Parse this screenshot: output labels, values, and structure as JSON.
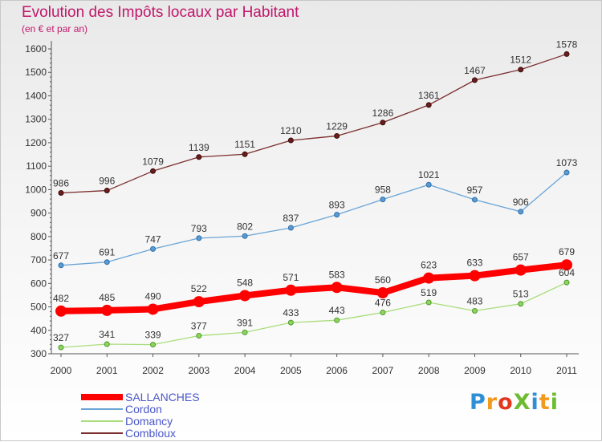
{
  "header": {
    "title": "Evolution des Impôts locaux par Habitant",
    "subtitle": "(en € et par an)"
  },
  "chart_data": {
    "type": "line",
    "title": "Evolution des Impôts locaux par Habitant",
    "subtitle": "(en € et par an)",
    "xlabel": "",
    "ylabel": "",
    "categories": [
      "2000",
      "2001",
      "2002",
      "2003",
      "2004",
      "2005",
      "2006",
      "2007",
      "2008",
      "2009",
      "2010",
      "2011"
    ],
    "ylim": [
      300,
      1600
    ],
    "yticks": [
      300,
      400,
      500,
      600,
      700,
      800,
      900,
      1000,
      1100,
      1200,
      1300,
      1400,
      1500,
      1600
    ],
    "grid": false,
    "legend_position": "bottom-left",
    "series": [
      {
        "name": "SALLANCHES",
        "color": "#ff0000",
        "values": [
          482,
          485,
          490,
          522,
          548,
          571,
          583,
          560,
          623,
          633,
          657,
          679
        ]
      },
      {
        "name": "Cordon",
        "color": "#6aa5d6",
        "values": [
          677,
          691,
          747,
          793,
          802,
          837,
          893,
          958,
          1021,
          957,
          906,
          1073
        ]
      },
      {
        "name": "Domancy",
        "color": "#a9dd7c",
        "values": [
          327,
          341,
          339,
          377,
          391,
          433,
          443,
          476,
          519,
          483,
          513,
          604
        ]
      },
      {
        "name": "Combloux",
        "color": "#7b2e2e",
        "values": [
          986,
          996,
          1079,
          1139,
          1151,
          1210,
          1229,
          1286,
          1361,
          1467,
          1512,
          1578
        ]
      }
    ]
  },
  "logo": {
    "letters": [
      {
        "char": "P",
        "color": "#2f8fd6"
      },
      {
        "char": "r",
        "color": "#f39a1e"
      },
      {
        "char": "o",
        "color": "#e2371f"
      },
      {
        "char": "X",
        "color": "#6dbb2f"
      },
      {
        "char": "i",
        "color": "#2f8fd6"
      },
      {
        "char": "t",
        "color": "#f39a1e"
      },
      {
        "char": "i",
        "color": "#6dbb2f"
      }
    ]
  }
}
